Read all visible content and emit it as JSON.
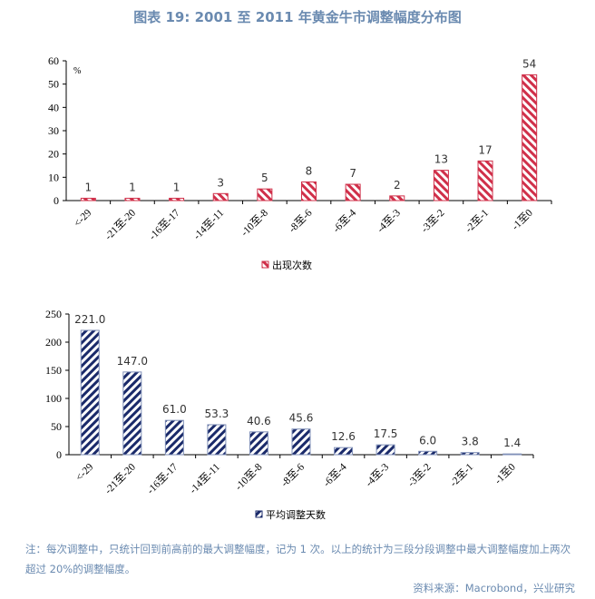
{
  "title": "图表 19: 2001 至 2011 年黄金牛市调整幅度分布图",
  "chart_data": [
    {
      "type": "bar",
      "categories": [
        "<-29",
        "-21至-20",
        "-16至-17",
        "-14至-11",
        "-10至-8",
        "-8至-6",
        "-6至-4",
        "-4至-3",
        "-3至-2",
        "-2至-1",
        "-1至0"
      ],
      "series": [
        {
          "name": "出现次数",
          "values": [
            1,
            1,
            1,
            3,
            5,
            8,
            7,
            2,
            13,
            17,
            54
          ],
          "labels": [
            "1",
            "1",
            "1",
            "3",
            "5",
            "8",
            "7",
            "2",
            "13",
            "17",
            "54"
          ]
        }
      ],
      "unit": "%",
      "ylim": [
        0,
        60
      ],
      "yticks": [
        0,
        10,
        20,
        30,
        40,
        50,
        60
      ],
      "legend": "bottom",
      "color": "#d0304a",
      "pattern": "diagonal-hatch"
    },
    {
      "type": "bar",
      "categories": [
        "<-29",
        "-21至-20",
        "-16至-17",
        "-14至-11",
        "-10至-8",
        "-8至-6",
        "-6至-4",
        "-4至-3",
        "-3至-2",
        "-2至-1",
        "-1至0"
      ],
      "series": [
        {
          "name": "平均调整天数",
          "values": [
            221.0,
            147.0,
            61.0,
            53.3,
            40.6,
            45.6,
            12.6,
            17.5,
            6.0,
            3.8,
            1.4
          ],
          "labels": [
            "221.0",
            "147.0",
            "61.0",
            "53.3",
            "40.6",
            "45.6",
            "12.6",
            "17.5",
            "6.0",
            "3.8",
            "1.4"
          ]
        }
      ],
      "ylim": [
        0,
        250
      ],
      "yticks": [
        0,
        50,
        100,
        150,
        200,
        250
      ],
      "legend": "bottom",
      "color": "#1a2a6a",
      "pattern": "diagonal-hatch"
    }
  ],
  "note": "注：每次调整中，只统计回到前高前的最大调整幅度，记为 1 次。以上的统计为三段分段调整中最大调整幅度加上两次超过 20%的调整幅度。",
  "source": "资料来源：Macrobond，兴业研究"
}
